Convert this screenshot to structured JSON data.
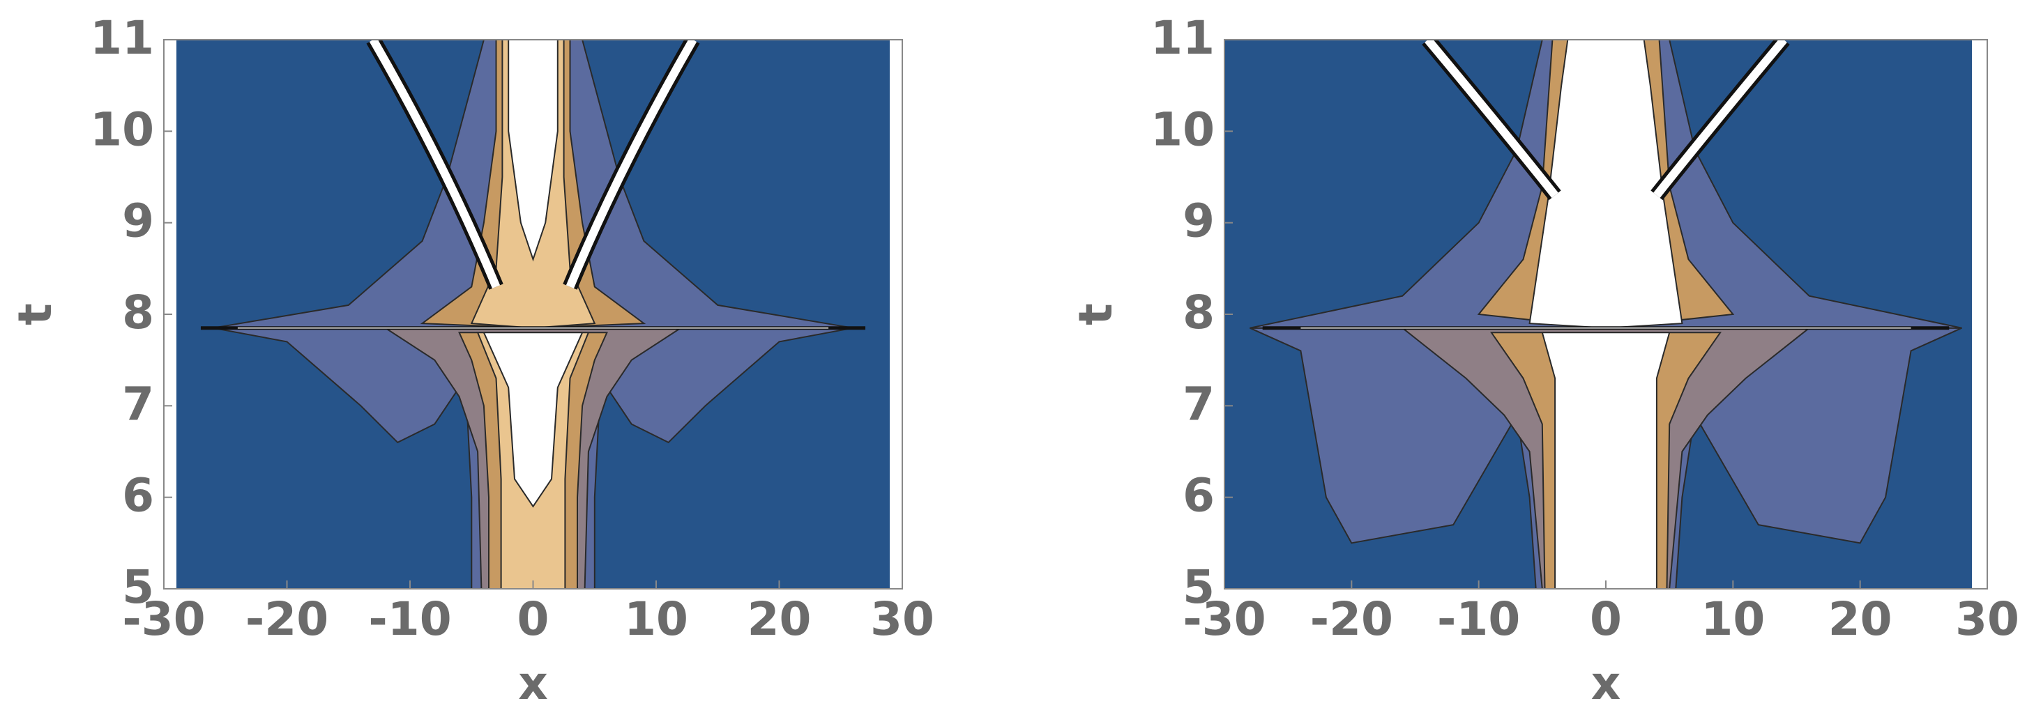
{
  "chart_data": [
    {
      "type": "contour",
      "xlabel": "x",
      "ylabel": "t",
      "xlim": [
        -30,
        30
      ],
      "ylim": [
        5,
        11
      ],
      "xticks": [
        -30,
        -20,
        -10,
        0,
        10,
        20,
        30
      ],
      "yticks": [
        5,
        6,
        7,
        8,
        9,
        10,
        11
      ]
    },
    {
      "type": "contour",
      "xlabel": "x",
      "ylabel": "t",
      "xlim": [
        -30,
        30
      ],
      "ylim": [
        5,
        11
      ],
      "xticks": [
        -30,
        -20,
        -10,
        0,
        10,
        20,
        30
      ],
      "yticks": [
        5,
        6,
        7,
        8,
        9,
        10,
        11
      ]
    }
  ]
}
